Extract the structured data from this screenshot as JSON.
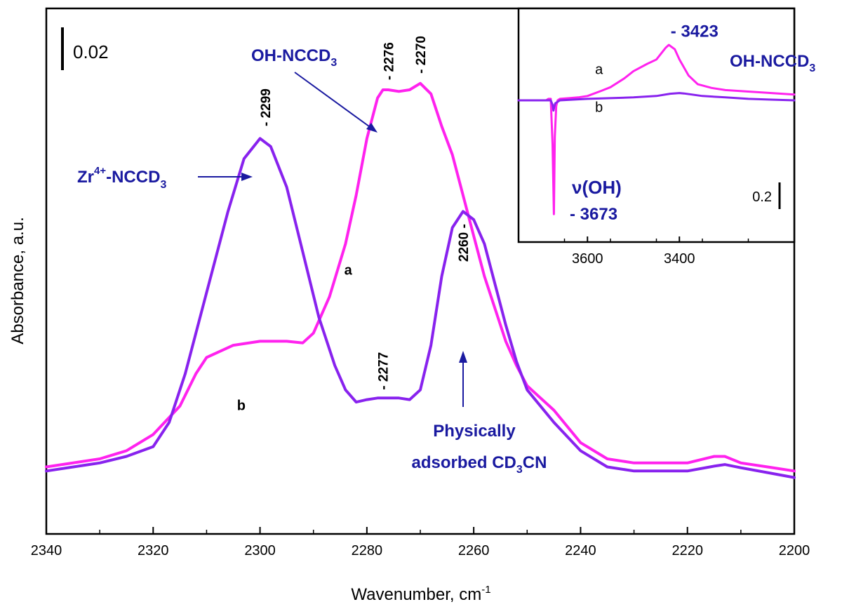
{
  "chart_data": [
    {
      "name": "main",
      "type": "line",
      "xlabel": "Wavenumber, cm",
      "xlabel_sup": "-1",
      "ylabel": "Absorbance, a.u.",
      "xlim": [
        2340,
        2200
      ],
      "x_ticks": [
        "2340",
        "2320",
        "2300",
        "2280",
        "2260",
        "2240",
        "2220",
        "2200"
      ],
      "x_tick_values": [
        2340,
        2320,
        2300,
        2280,
        2260,
        2240,
        2220,
        2200
      ],
      "ylim": [
        0.0,
        0.06
      ],
      "scale_bar_label": "0.02",
      "scale_bar_value": 0.02,
      "series": [
        {
          "name": "a",
          "color": "#ff22ee",
          "x": [
            2340,
            2330,
            2325,
            2320,
            2315,
            2312,
            2310,
            2305,
            2300,
            2295,
            2292,
            2290,
            2287,
            2284,
            2282,
            2280,
            2278,
            2277,
            2276,
            2274,
            2272,
            2270,
            2268,
            2266,
            2264,
            2262,
            2260,
            2258,
            2256,
            2254,
            2252,
            2250,
            2245,
            2240,
            2235,
            2230,
            2225,
            2220,
            2215,
            2213,
            2210,
            2205,
            2200
          ],
          "y": [
            0.0035,
            0.0045,
            0.0055,
            0.0075,
            0.011,
            0.015,
            0.017,
            0.0185,
            0.019,
            0.019,
            0.0188,
            0.02,
            0.0245,
            0.031,
            0.037,
            0.044,
            0.049,
            0.05,
            0.05,
            0.0498,
            0.05,
            0.0508,
            0.0495,
            0.0455,
            0.042,
            0.037,
            0.032,
            0.027,
            0.023,
            0.019,
            0.016,
            0.0135,
            0.0105,
            0.0065,
            0.0045,
            0.004,
            0.004,
            0.004,
            0.0048,
            0.0048,
            0.004,
            0.0035,
            0.003
          ]
        },
        {
          "name": "b",
          "color": "#8822ee",
          "x": [
            2340,
            2330,
            2325,
            2320,
            2317,
            2314,
            2310,
            2306,
            2303,
            2300,
            2298,
            2295,
            2292,
            2289,
            2286,
            2284,
            2282,
            2280,
            2278,
            2277,
            2274,
            2272,
            2270,
            2268,
            2266,
            2264,
            2262,
            2260,
            2258,
            2256,
            2254,
            2252,
            2250,
            2245,
            2240,
            2235,
            2230,
            2225,
            2220,
            2215,
            2213,
            2210,
            2205,
            2200
          ],
          "y": [
            0.003,
            0.004,
            0.0048,
            0.006,
            0.009,
            0.015,
            0.025,
            0.035,
            0.0415,
            0.044,
            0.043,
            0.038,
            0.03,
            0.022,
            0.016,
            0.013,
            0.0115,
            0.0118,
            0.012,
            0.012,
            0.012,
            0.0118,
            0.013,
            0.0185,
            0.027,
            0.033,
            0.035,
            0.034,
            0.031,
            0.026,
            0.021,
            0.0165,
            0.013,
            0.009,
            0.0055,
            0.0035,
            0.003,
            0.003,
            0.003,
            0.0036,
            0.0038,
            0.0034,
            0.0028,
            0.0022
          ]
        }
      ],
      "series_labels": [
        {
          "text": "a",
          "x": 2283.5,
          "y": 0.0272
        },
        {
          "text": "b",
          "x": 2303.5,
          "y": 0.0105
        }
      ],
      "peak_labels": [
        {
          "text": "- 2299",
          "x": 2299,
          "y": 0.0455
        },
        {
          "text": "- 2276",
          "x": 2276,
          "y": 0.0512
        },
        {
          "text": "- 2270",
          "x": 2270,
          "y": 0.052
        },
        {
          "text": "- 2277",
          "x": 2277,
          "y": 0.013
        },
        {
          "text": "2260 -",
          "x": 2262,
          "y": 0.0288
        }
      ],
      "annotations": {
        "oh_label": "OH-NCCD",
        "oh_sub": "3",
        "zr_label_pre": "Zr",
        "zr_sup": "4+",
        "zr_label_post": "-NCCD",
        "zr_sub": "3",
        "phys_line1": "Physically",
        "phys_line2_pre": "adsorbed CD",
        "phys_line2_sub": "3",
        "phys_line2_post": "CN"
      }
    },
    {
      "name": "inset",
      "type": "line",
      "xlim": [
        3750,
        3150
      ],
      "x_ticks": [
        "3600",
        "3400"
      ],
      "x_tick_values": [
        3600,
        3400
      ],
      "ylim": [
        -1.0,
        0.5
      ],
      "scale_bar_label": "0.2",
      "scale_bar_value": 0.2,
      "series": [
        {
          "name": "a",
          "color": "#ff22ee",
          "x": [
            3750,
            3700,
            3690,
            3685,
            3680,
            3676,
            3673,
            3671,
            3668,
            3665,
            3660,
            3640,
            3620,
            3600,
            3570,
            3550,
            3520,
            3500,
            3470,
            3450,
            3430,
            3423,
            3410,
            3400,
            3380,
            3360,
            3330,
            3300,
            3250,
            3200,
            3150
          ],
          "y": [
            0.0,
            0.0,
            0.0,
            0.01,
            0.01,
            -0.3,
            -0.78,
            -0.25,
            -0.04,
            0.0,
            0.01,
            0.015,
            0.02,
            0.03,
            0.065,
            0.09,
            0.15,
            0.2,
            0.25,
            0.28,
            0.36,
            0.38,
            0.35,
            0.28,
            0.17,
            0.11,
            0.085,
            0.07,
            0.06,
            0.05,
            0.04
          ]
        },
        {
          "name": "b",
          "color": "#8822ee",
          "x": [
            3750,
            3700,
            3690,
            3680,
            3676,
            3674,
            3672,
            3670,
            3665,
            3660,
            3600,
            3500,
            3450,
            3420,
            3400,
            3390,
            3350,
            3300,
            3250,
            3200,
            3150
          ],
          "y": [
            0.0,
            0.0,
            0.0,
            0.0,
            -0.03,
            -0.07,
            -0.04,
            -0.02,
            -0.01,
            0.0,
            0.01,
            0.02,
            0.03,
            0.045,
            0.05,
            0.047,
            0.03,
            0.02,
            0.01,
            0.005,
            0.0
          ]
        }
      ],
      "series_labels": [
        {
          "text": "a",
          "x": 3575,
          "y": 0.18
        },
        {
          "text": "b",
          "x": 3575,
          "y": -0.08
        }
      ],
      "peak_labels": [
        {
          "text": "- 3423",
          "x": 3419,
          "y": 0.435
        }
      ],
      "annotations": {
        "oh_label": "OH-NCCD",
        "oh_sub": "3",
        "nu_label": "ν(OH)",
        "nu_value": "- 3673"
      }
    }
  ]
}
